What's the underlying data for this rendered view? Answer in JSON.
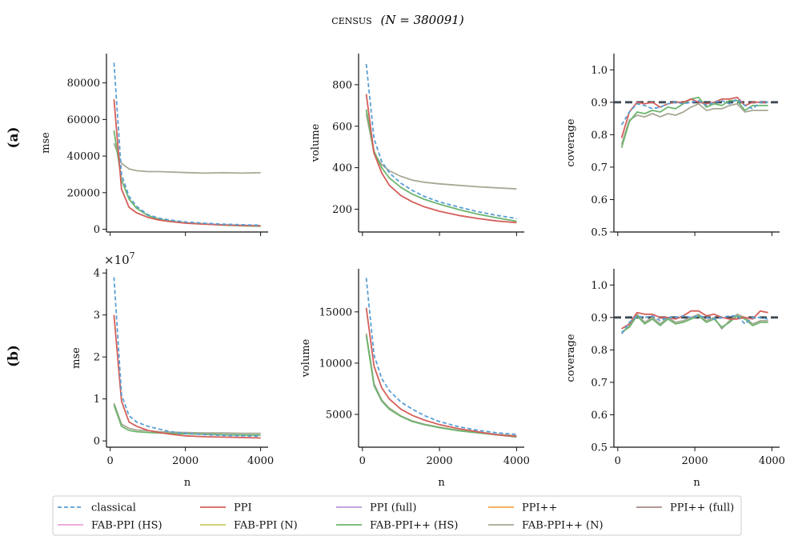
{
  "figure": {
    "title_prefix": "census",
    "title_suffix": "(N = 380091)",
    "row_labels": [
      "(a)",
      "(b)"
    ]
  },
  "legend": {
    "placement": "bottom-center",
    "entries": [
      {
        "name": "classical",
        "color": "#5a9fd4",
        "dashed": true
      },
      {
        "name": "PPI",
        "color": "#d45f5a",
        "dashed": false
      },
      {
        "name": "PPI (full)",
        "color": "#b899d9",
        "dashed": false
      },
      {
        "name": "PPI++",
        "color": "#f5a64a",
        "dashed": false
      },
      {
        "name": "PPI++ (full)",
        "color": "#a88a85",
        "dashed": false
      },
      {
        "name": "FAB-PPI (HS)",
        "color": "#e9a3d8",
        "dashed": false
      },
      {
        "name": "FAB-PPI (N)",
        "color": "#cccc66",
        "dashed": false
      },
      {
        "name": "FAB-PPI++ (HS)",
        "color": "#6db56d",
        "dashed": false
      },
      {
        "name": "FAB-PPI++ (N)",
        "color": "#a8a896",
        "dashed": false
      }
    ]
  },
  "chart_data": [
    {
      "id": "a-mse",
      "type": "line",
      "ylabel": "mse",
      "xlabel": "",
      "xlim": [
        -100,
        4200
      ],
      "ylim": [
        -1500,
        96000
      ],
      "xticks": [
        0,
        2000,
        4000
      ],
      "show_xtick_labels": false,
      "yticks": [
        0,
        20000,
        40000,
        60000,
        80000
      ],
      "ytick_labels": [
        "0",
        "20000",
        "40000",
        "60000",
        "80000"
      ],
      "multiplier": "",
      "x": [
        100,
        300,
        500,
        700,
        1000,
        1300,
        1600,
        2000,
        2500,
        3000,
        3500,
        4000
      ],
      "series": [
        {
          "name": "classical",
          "values": [
            91000,
            30000,
            18000,
            12500,
            8000,
            6000,
            5000,
            4000,
            3300,
            2800,
            2500,
            2200
          ]
        },
        {
          "name": "PPI",
          "values": [
            71000,
            22000,
            12000,
            9000,
            6500,
            5000,
            4200,
            3300,
            2800,
            2400,
            2100,
            1900
          ]
        },
        {
          "name": "FAB-PPI++ (HS)",
          "values": [
            54000,
            27000,
            16500,
            11500,
            7500,
            5500,
            4500,
            3500,
            2900,
            2200,
            1900,
            1600
          ]
        },
        {
          "name": "FAB-PPI++ (N)",
          "values": [
            47000,
            36000,
            33000,
            32000,
            31500,
            31500,
            31300,
            31000,
            30700,
            30900,
            30700,
            30900
          ]
        }
      ]
    },
    {
      "id": "a-volume",
      "type": "line",
      "ylabel": "volume",
      "xlabel": "",
      "xlim": [
        -100,
        4200
      ],
      "ylim": [
        90,
        950
      ],
      "xticks": [
        0,
        2000,
        4000
      ],
      "show_xtick_labels": false,
      "yticks": [
        200,
        400,
        600,
        800
      ],
      "ytick_labels": [
        "200",
        "400",
        "600",
        "800"
      ],
      "multiplier": "",
      "x": [
        100,
        300,
        500,
        700,
        1000,
        1300,
        1600,
        2000,
        2500,
        3000,
        3500,
        4000
      ],
      "series": [
        {
          "name": "classical",
          "values": [
            900,
            540,
            430,
            375,
            325,
            290,
            262,
            235,
            210,
            188,
            170,
            155
          ]
        },
        {
          "name": "PPI",
          "values": [
            755,
            470,
            375,
            315,
            265,
            235,
            212,
            190,
            170,
            155,
            143,
            135
          ]
        },
        {
          "name": "FAB-PPI++ (HS)",
          "values": [
            680,
            480,
            400,
            350,
            305,
            272,
            248,
            224,
            198,
            176,
            158,
            142
          ]
        },
        {
          "name": "FAB-PPI++ (N)",
          "values": [
            660,
            470,
            415,
            385,
            358,
            340,
            330,
            322,
            315,
            308,
            303,
            298
          ]
        }
      ]
    },
    {
      "id": "a-coverage",
      "type": "line",
      "ylabel": "coverage",
      "xlabel": "",
      "xlim": [
        -100,
        4200
      ],
      "ylim": [
        0.5,
        1.05
      ],
      "xticks": [
        0,
        2000,
        4000
      ],
      "show_xtick_labels": false,
      "yticks": [
        0.5,
        0.6,
        0.7,
        0.8,
        0.9,
        1.0
      ],
      "ytick_labels": [
        "0.5",
        "0.6",
        "0.7",
        "0.8",
        "0.9",
        "1.0"
      ],
      "multiplier": "",
      "target": 0.9,
      "x": [
        100,
        300,
        500,
        700,
        900,
        1100,
        1300,
        1500,
        1700,
        1900,
        2100,
        2300,
        2500,
        2700,
        2900,
        3100,
        3300,
        3500,
        3700,
        3900
      ],
      "series": [
        {
          "name": "classical",
          "values": [
            0.83,
            0.87,
            0.895,
            0.89,
            0.88,
            0.885,
            0.895,
            0.9,
            0.895,
            0.9,
            0.905,
            0.89,
            0.9,
            0.905,
            0.895,
            0.91,
            0.89,
            0.88,
            0.9,
            0.9
          ]
        },
        {
          "name": "PPI",
          "values": [
            0.79,
            0.87,
            0.9,
            0.895,
            0.9,
            0.885,
            0.895,
            0.9,
            0.9,
            0.91,
            0.9,
            0.895,
            0.9,
            0.91,
            0.91,
            0.915,
            0.89,
            0.9,
            0.9,
            0.9
          ]
        },
        {
          "name": "FAB-PPI++ (HS)",
          "values": [
            0.76,
            0.84,
            0.87,
            0.865,
            0.875,
            0.87,
            0.885,
            0.88,
            0.895,
            0.91,
            0.915,
            0.885,
            0.895,
            0.89,
            0.905,
            0.905,
            0.875,
            0.89,
            0.89,
            0.89
          ]
        },
        {
          "name": "FAB-PPI++ (N)",
          "values": [
            0.77,
            0.845,
            0.86,
            0.855,
            0.865,
            0.855,
            0.865,
            0.86,
            0.87,
            0.885,
            0.895,
            0.875,
            0.88,
            0.88,
            0.89,
            0.895,
            0.87,
            0.875,
            0.875,
            0.875
          ]
        }
      ]
    },
    {
      "id": "b-mse",
      "type": "line",
      "ylabel": "mse",
      "xlabel": "n",
      "xlim": [
        -100,
        4200
      ],
      "ylim": [
        -0.15,
        4.1
      ],
      "xticks": [
        0,
        2000,
        4000
      ],
      "show_xtick_labels": true,
      "yticks": [
        0,
        1,
        2,
        3,
        4
      ],
      "ytick_labels": [
        "0",
        "1",
        "2",
        "3",
        "4"
      ],
      "multiplier": "×10^7",
      "x": [
        100,
        300,
        500,
        700,
        1000,
        1300,
        1600,
        2000,
        2500,
        3000,
        3500,
        4000
      ],
      "series": [
        {
          "name": "classical",
          "values": [
            3.9,
            1.1,
            0.6,
            0.45,
            0.35,
            0.28,
            0.22,
            0.18,
            0.15,
            0.13,
            0.12,
            0.11
          ]
        },
        {
          "name": "PPI",
          "values": [
            3.0,
            0.95,
            0.45,
            0.35,
            0.25,
            0.2,
            0.16,
            0.12,
            0.1,
            0.09,
            0.08,
            0.07
          ]
        },
        {
          "name": "FAB-PPI++ (HS)",
          "values": [
            0.85,
            0.35,
            0.25,
            0.22,
            0.2,
            0.19,
            0.18,
            0.17,
            0.16,
            0.15,
            0.14,
            0.14
          ]
        },
        {
          "name": "FAB-PPI++ (N)",
          "values": [
            0.9,
            0.4,
            0.3,
            0.26,
            0.24,
            0.22,
            0.21,
            0.2,
            0.19,
            0.19,
            0.18,
            0.18
          ]
        }
      ]
    },
    {
      "id": "b-volume",
      "type": "line",
      "ylabel": "volume",
      "xlabel": "n",
      "xlim": [
        -100,
        4200
      ],
      "ylim": [
        1800,
        19200
      ],
      "xticks": [
        0,
        2000,
        4000
      ],
      "show_xtick_labels": true,
      "yticks": [
        5000,
        10000,
        15000
      ],
      "ytick_labels": [
        "5000",
        "10000",
        "15000"
      ],
      "multiplier": "",
      "x": [
        100,
        300,
        500,
        700,
        1000,
        1300,
        1600,
        2000,
        2500,
        3000,
        3500,
        4000
      ],
      "series": [
        {
          "name": "classical",
          "values": [
            18300,
            10800,
            8500,
            7300,
            6200,
            5500,
            4900,
            4300,
            3800,
            3450,
            3200,
            3050
          ]
        },
        {
          "name": "PPI",
          "values": [
            15400,
            9700,
            7600,
            6500,
            5500,
            4900,
            4450,
            4000,
            3600,
            3300,
            3000,
            2850
          ]
        },
        {
          "name": "FAB-PPI++ (HS)",
          "values": [
            12700,
            7800,
            6300,
            5500,
            4800,
            4300,
            4000,
            3700,
            3400,
            3200,
            3000,
            2800
          ]
        },
        {
          "name": "FAB-PPI++ (N)",
          "values": [
            12900,
            8000,
            6400,
            5600,
            4850,
            4350,
            4050,
            3750,
            3450,
            3250,
            3050,
            2900
          ]
        }
      ]
    },
    {
      "id": "b-coverage",
      "type": "line",
      "ylabel": "coverage",
      "xlabel": "n",
      "xlim": [
        -100,
        4200
      ],
      "ylim": [
        0.5,
        1.05
      ],
      "xticks": [
        0,
        2000,
        4000
      ],
      "show_xtick_labels": true,
      "yticks": [
        0.5,
        0.6,
        0.7,
        0.8,
        0.9,
        1.0
      ],
      "ytick_labels": [
        "0.5",
        "0.6",
        "0.7",
        "0.8",
        "0.9",
        "1.0"
      ],
      "multiplier": "",
      "target": 0.9,
      "x": [
        100,
        300,
        500,
        700,
        900,
        1100,
        1300,
        1500,
        1700,
        1900,
        2100,
        2300,
        2500,
        2700,
        2900,
        3100,
        3300,
        3500,
        3700,
        3900
      ],
      "series": [
        {
          "name": "classical",
          "values": [
            0.85,
            0.885,
            0.905,
            0.9,
            0.905,
            0.89,
            0.9,
            0.9,
            0.905,
            0.9,
            0.905,
            0.9,
            0.895,
            0.9,
            0.905,
            0.905,
            0.88,
            0.9,
            0.9,
            0.895
          ]
        },
        {
          "name": "PPI",
          "values": [
            0.865,
            0.88,
            0.915,
            0.91,
            0.91,
            0.9,
            0.9,
            0.895,
            0.905,
            0.92,
            0.92,
            0.905,
            0.91,
            0.9,
            0.895,
            0.895,
            0.9,
            0.895,
            0.92,
            0.915
          ]
        },
        {
          "name": "FAB-PPI++ (HS)",
          "values": [
            0.855,
            0.87,
            0.905,
            0.88,
            0.895,
            0.875,
            0.895,
            0.88,
            0.885,
            0.895,
            0.905,
            0.885,
            0.895,
            0.87,
            0.885,
            0.905,
            0.895,
            0.875,
            0.885,
            0.885
          ]
        },
        {
          "name": "FAB-PPI++ (N)",
          "values": [
            0.85,
            0.875,
            0.91,
            0.885,
            0.9,
            0.88,
            0.9,
            0.885,
            0.89,
            0.9,
            0.91,
            0.89,
            0.9,
            0.865,
            0.89,
            0.91,
            0.9,
            0.88,
            0.89,
            0.89
          ]
        }
      ]
    }
  ]
}
